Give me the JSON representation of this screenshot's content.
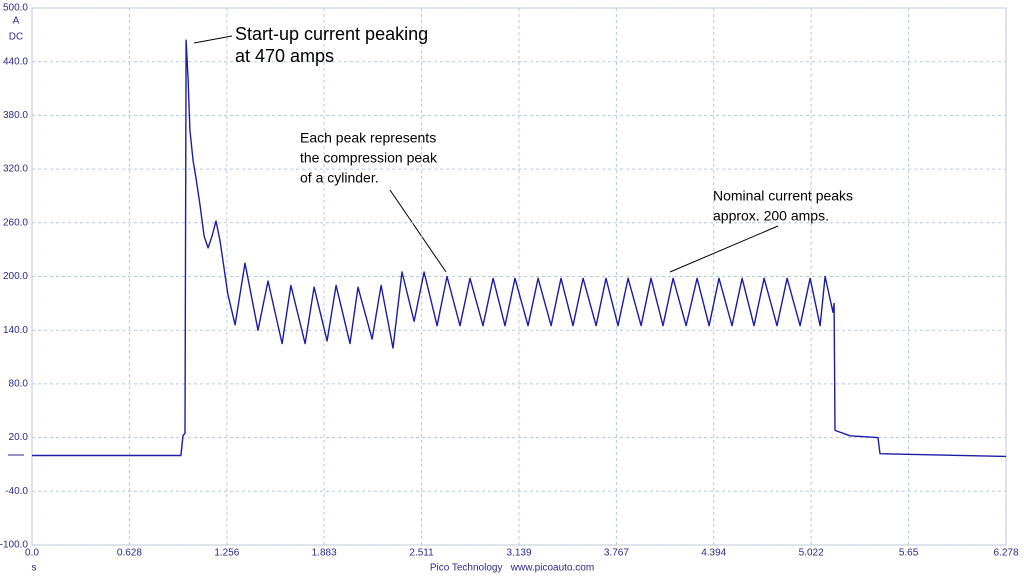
{
  "chart_data": {
    "type": "line",
    "y_unit": [
      "A",
      "DC"
    ],
    "x_unit": "s",
    "footer": "Pico Technology   www.picoauto.com",
    "color": "#1c1ca6",
    "grid": true,
    "xlim": [
      0,
      6.278
    ],
    "ylim": [
      -100,
      500
    ],
    "xticks": [
      {
        "value": 0,
        "label": "0.0"
      },
      0.628,
      1.256,
      1.883,
      2.511,
      3.139,
      3.767,
      4.394,
      5.022,
      5.65,
      6.278
    ],
    "yticks": [
      {
        "value": -100,
        "label": "-100.0"
      },
      {
        "value": -40,
        "label": "-40.0"
      },
      {
        "value": 20,
        "label": "20.0"
      },
      {
        "value": 80,
        "label": "80.0"
      },
      {
        "value": 140,
        "label": "140.0"
      },
      {
        "value": 200,
        "label": "200.0"
      },
      {
        "value": 260,
        "label": "260.0"
      },
      {
        "value": 320,
        "label": "320.0"
      },
      {
        "value": 380,
        "label": "380.0"
      },
      {
        "value": 440,
        "label": "440.0"
      },
      {
        "value": 500,
        "label": "500.0"
      }
    ],
    "x": [
      0.0,
      0.96,
      0.973,
      0.986,
      0.993,
      1.006,
      1.018,
      1.038,
      1.057,
      1.083,
      1.109,
      1.135,
      1.16,
      1.186,
      1.212,
      1.263,
      1.309,
      1.373,
      1.457,
      1.521,
      1.612,
      1.669,
      1.76,
      1.818,
      1.902,
      1.96,
      2.05,
      2.101,
      2.192,
      2.25,
      2.327,
      2.385,
      2.463,
      2.527,
      2.611,
      2.675,
      2.759,
      2.823,
      2.907,
      2.972,
      3.049,
      3.113,
      3.197,
      3.262,
      3.346,
      3.41,
      3.487,
      3.552,
      3.636,
      3.7,
      3.777,
      3.842,
      3.926,
      3.99,
      4.067,
      4.132,
      4.216,
      4.287,
      4.364,
      4.428,
      4.512,
      4.577,
      4.654,
      4.719,
      4.802,
      4.867,
      4.951,
      5.015,
      5.08,
      5.112,
      5.163,
      5.17,
      5.176,
      5.273,
      5.453,
      5.466,
      6.278
    ],
    "values": [
      0,
      0,
      22,
      25,
      464,
      420,
      364,
      330,
      310,
      280,
      245,
      232,
      245,
      262,
      240,
      180,
      146,
      215,
      140,
      195,
      125,
      190,
      125,
      188,
      128,
      190,
      125,
      188,
      130,
      190,
      120,
      205,
      150,
      205,
      145,
      200,
      145,
      198,
      145,
      198,
      145,
      198,
      145,
      198,
      145,
      198,
      145,
      198,
      145,
      198,
      145,
      198,
      145,
      198,
      145,
      198,
      145,
      198,
      145,
      198,
      145,
      198,
      145,
      198,
      145,
      198,
      145,
      198,
      145,
      200,
      160,
      170,
      28,
      22,
      20,
      2,
      -1
    ],
    "annotations": [
      {
        "lines": [
          "Start-up current peaking",
          "at 470 amps"
        ]
      },
      {
        "lines": [
          "Each peak represents",
          "the compression peak",
          "of a cylinder."
        ]
      },
      {
        "lines": [
          "Nominal current peaks",
          "approx. 200 amps."
        ]
      }
    ]
  }
}
